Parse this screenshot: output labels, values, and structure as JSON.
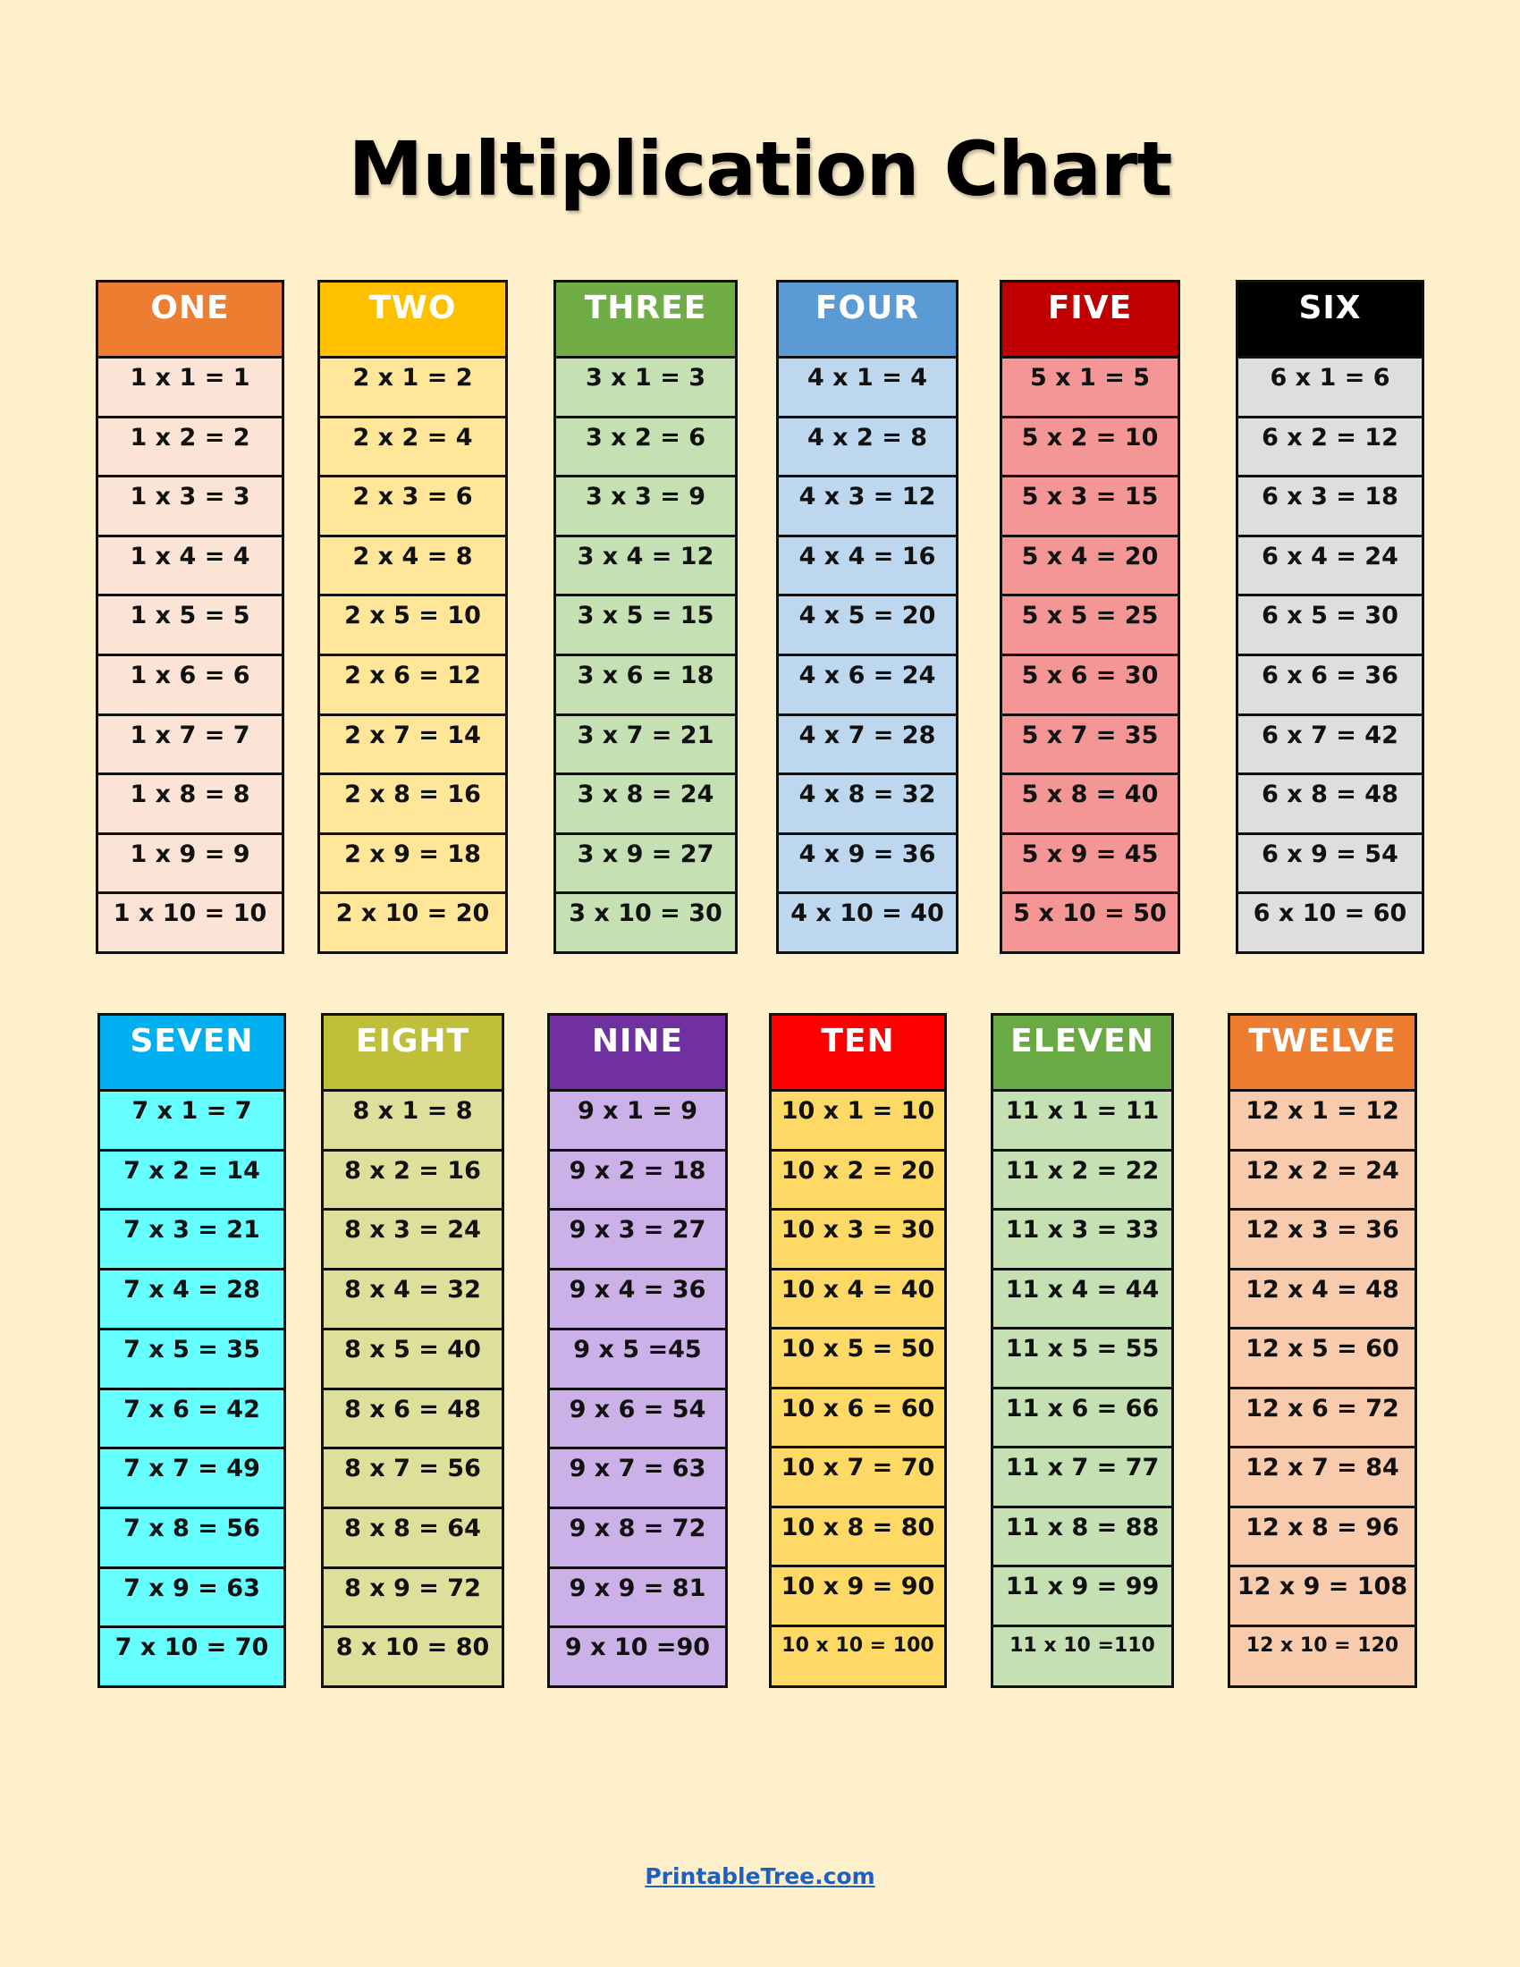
{
  "title": "Multiplication Chart",
  "footer_link": "PrintableTree.com",
  "tables": [
    {
      "label": "ONE",
      "header_color": "#ED7D31",
      "cell_color": "#FBE4D5",
      "rows": [
        "1 x 1 = 1",
        "1 x 2 = 2",
        "1 x 3 = 3",
        "1 x 4 = 4",
        "1 x 5 = 5",
        "1 x 6 = 6",
        "1 x 7 = 7",
        "1 x 8 = 8",
        "1 x 9 = 9",
        "1 x 10 = 10"
      ]
    },
    {
      "label": "TWO",
      "header_color": "#FFC000",
      "cell_color": "#FFE699",
      "rows": [
        "2 x 1 = 2",
        "2 x 2 = 4",
        "2 x 3 = 6",
        "2 x 4 = 8",
        "2 x 5 = 10",
        "2 x 6 = 12",
        "2 x 7 = 14",
        "2 x 8 = 16",
        "2 x 9 = 18",
        "2 x 10 = 20"
      ]
    },
    {
      "label": "THREE",
      "header_color": "#70AD47",
      "cell_color": "#C5E0B3",
      "rows": [
        "3 x 1 = 3",
        "3 x 2 = 6",
        "3 x 3 = 9",
        "3 x 4 = 12",
        "3 x 5 = 15",
        "3 x 6 = 18",
        "3 x 7 = 21",
        "3 x 8 = 24",
        "3 x 9 = 27",
        "3 x 10 = 30"
      ]
    },
    {
      "label": "FOUR",
      "header_color": "#5B9BD5",
      "cell_color": "#BDD7EE",
      "rows": [
        "4 x 1 = 4",
        "4 x 2 = 8",
        "4 x 3 = 12",
        "4 x 4 = 16",
        "4 x 5 = 20",
        "4 x 6 = 24",
        "4 x 7 = 28",
        "4 x 8 = 32",
        "4 x 9 = 36",
        "4 x 10 = 40"
      ]
    },
    {
      "label": "FIVE",
      "header_color": "#C00000",
      "cell_color": "#F49696",
      "rows": [
        "5 x 1 = 5",
        "5 x 2 = 10",
        "5 x 3 = 15",
        "5 x 4 = 20",
        "5 x 5 = 25",
        "5 x 6 = 30",
        "5 x 7 = 35",
        "5 x 8 = 40",
        "5 x 9 = 45",
        "5 x 10 = 50"
      ]
    },
    {
      "label": "SIX",
      "header_color": "#000000",
      "cell_color": "#DEDEDE",
      "rows": [
        "6 x 1 = 6",
        "6 x 2 = 12",
        "6 x 3 = 18",
        "6 x 4 = 24",
        "6 x 5 = 30",
        "6 x 6 = 36",
        "6 x 7 = 42",
        "6 x 8 = 48",
        "6 x 9 = 54",
        "6 x 10 = 60"
      ]
    },
    {
      "label": "SEVEN",
      "header_color": "#00B0F0",
      "cell_color": "#66FFFF",
      "rows": [
        "7 x 1 = 7",
        "7 x 2 = 14",
        "7 x 3 = 21",
        "7 x 4 = 28",
        "7 x 5 = 35",
        "7 x 6 = 42",
        "7 x 7 = 49",
        "7 x 8 = 56",
        "7 x 9 = 63",
        "7 x 10 = 70"
      ]
    },
    {
      "label": "EIGHT",
      "header_color": "#BFBF3A",
      "cell_color": "#DEDF9A",
      "rows": [
        "8 x 1 = 8",
        "8 x 2 = 16",
        "8 x 3 = 24",
        "8 x 4 = 32",
        "8 x 5 = 40",
        "8 x 6 = 48",
        "8 x 7 = 56",
        "8 x 8 = 64",
        "8 x 9 = 72",
        "8 x 10 = 80"
      ]
    },
    {
      "label": "NINE",
      "header_color": "#7030A0",
      "cell_color": "#CCB0E8",
      "rows": [
        "9 x 1 = 9",
        "9 x 2 = 18",
        "9 x 3 = 27",
        "9 x 4 = 36",
        "9 x 5 =45",
        "9 x 6 = 54",
        "9 x 7 = 63",
        "9 x 8 = 72",
        "9 x 9 = 81",
        "9 x 10 =90"
      ]
    },
    {
      "label": "TEN",
      "header_color": "#FF0000",
      "cell_color": "#FFD966",
      "rows": [
        "10 x 1 = 10",
        "10 x 2 = 20",
        "10 x 3 = 30",
        "10 x 4 = 40",
        "10 x 5 = 50",
        "10 x 6 = 60",
        "10 x 7 = 70",
        "10 x 8 = 80",
        "10 x 9 = 90",
        "10 x 10 = 100"
      ]
    },
    {
      "label": "ELEVEN",
      "header_color": "#6AAA45",
      "cell_color": "#C5E0B3",
      "rows": [
        "11 x 1 = 11",
        "11 x 2 = 22",
        "11 x 3 = 33",
        "11 x 4 = 44",
        "11 x 5 = 55",
        "11 x 6 = 66",
        "11 x 7 = 77",
        "11 x 8 = 88",
        "11 x 9 = 99",
        "11 x 10 =110"
      ]
    },
    {
      "label": "TWELVE",
      "header_color": "#ED7D31",
      "cell_color": "#F8CBAD",
      "rows": [
        "12 x 1 = 12",
        "12 x 2 = 24",
        "12 x 3 = 36",
        "12 x 4 = 48",
        "12 x 5 = 60",
        "12 x 6 = 72",
        "12 x 7 = 84",
        "12 x 8 = 96",
        "12 x 9 = 108",
        "12 x 10 = 120"
      ]
    }
  ]
}
